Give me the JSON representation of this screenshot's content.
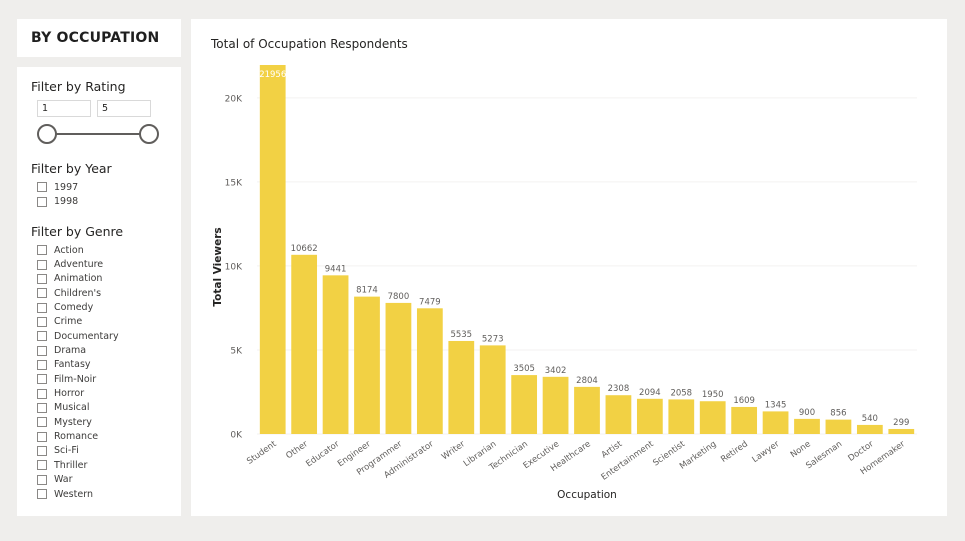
{
  "header": {
    "title": "BY OCCUPATION"
  },
  "filters": {
    "rating": {
      "title": "Filter by Rating",
      "min": "1",
      "max": "5",
      "level_low": 1,
      "level_high": 5
    },
    "year": {
      "title": "Filter by Year",
      "options": [
        "1997",
        "1998"
      ]
    },
    "genre": {
      "title": "Filter by Genre",
      "options": [
        "Action",
        "Adventure",
        "Animation",
        "Children's",
        "Comedy",
        "Crime",
        "Documentary",
        "Drama",
        "Fantasy",
        "Film-Noir",
        "Horror",
        "Musical",
        "Mystery",
        "Romance",
        "Sci-Fi",
        "Thriller",
        "War",
        "Western"
      ]
    }
  },
  "chart_data": {
    "type": "bar",
    "title": "Total of Occupation Respondents",
    "xlabel": "Occupation",
    "ylabel": "Total Viewers",
    "categories": [
      "Student",
      "Other",
      "Educator",
      "Engineer",
      "Programmer",
      "Administrator",
      "Writer",
      "Librarian",
      "Technician",
      "Executive",
      "Healthcare",
      "Artist",
      "Entertainment",
      "Scientist",
      "Marketing",
      "Retired",
      "Lawyer",
      "None",
      "Salesman",
      "Doctor",
      "Homemaker"
    ],
    "values": [
      21956,
      10662,
      9441,
      8174,
      7800,
      7479,
      5535,
      5273,
      3505,
      3402,
      2804,
      2308,
      2094,
      2058,
      1950,
      1609,
      1345,
      900,
      856,
      540,
      299
    ],
    "data_labels": [
      "21956",
      "10662",
      "9441",
      "8174",
      "7800",
      "7479",
      "5535",
      "5273",
      "3505",
      "3402",
      "2804",
      "2308",
      "2094",
      "2058",
      "1950",
      "1609",
      "1345",
      "900",
      "856",
      "540",
      "299"
    ],
    "yticks": [
      0,
      5000,
      10000,
      15000,
      20000
    ],
    "ytick_labels": [
      "0K",
      "5K",
      "10K",
      "15K",
      "20K"
    ],
    "ylim": [
      0,
      21956
    ],
    "grid": true,
    "colors": {
      "bar": "#f2d144",
      "label_inside": "#ffffff",
      "label": "#605e5c",
      "grid": "#f3f2f1"
    }
  }
}
